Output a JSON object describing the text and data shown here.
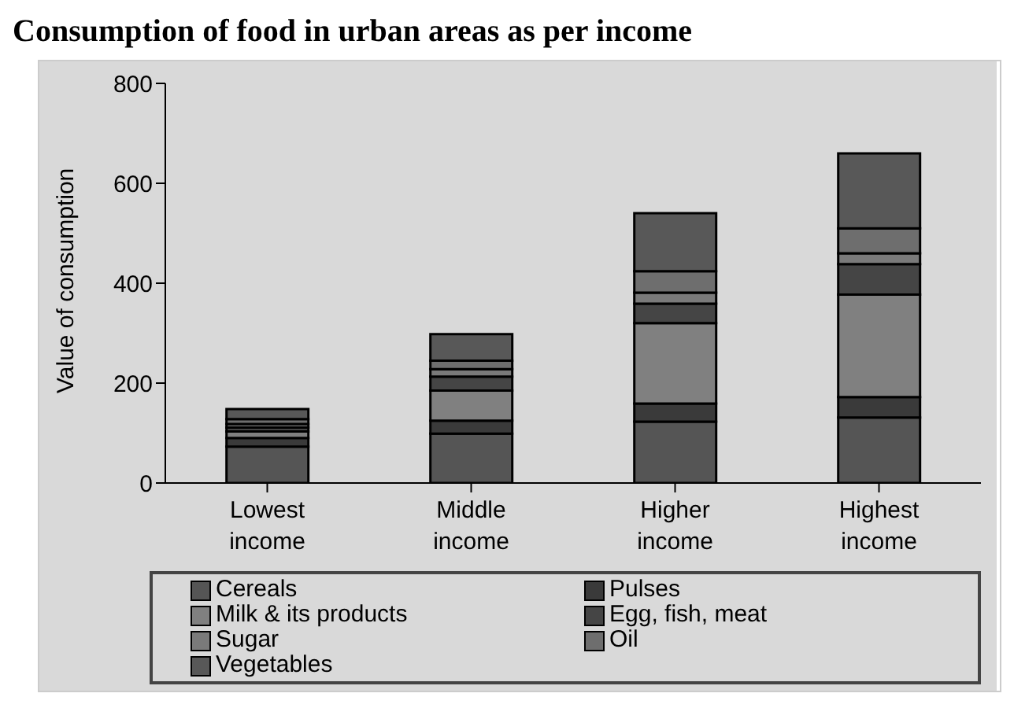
{
  "chart_data": {
    "type": "bar",
    "title": "Consumption of food in urban areas as per income",
    "ylabel": "Value of consumption",
    "categories": [
      "Lowest income",
      "Middle income",
      "Higher income",
      "Highest income"
    ],
    "stacked": true,
    "ylim": [
      0,
      800
    ],
    "yticks": [
      0,
      200,
      400,
      600,
      800
    ],
    "grid": false,
    "legend": "bottom",
    "series": [
      {
        "name": "Cereals",
        "color": "#555555",
        "values": [
          73,
          99,
          123,
          131
        ]
      },
      {
        "name": "Pulses",
        "color": "#3a3a3a",
        "values": [
          17,
          26,
          36,
          41
        ]
      },
      {
        "name": "Milk & its products",
        "color": "#808080",
        "values": [
          13,
          60,
          161,
          205
        ]
      },
      {
        "name": "Egg, fish, meat",
        "color": "#454545",
        "values": [
          8,
          28,
          39,
          61
        ]
      },
      {
        "name": "Sugar",
        "color": "#7a7a7a",
        "values": [
          7,
          15,
          22,
          22
        ]
      },
      {
        "name": "Oil",
        "color": "#6e6e6e",
        "values": [
          10,
          17,
          43,
          50
        ]
      },
      {
        "name": "Vegetables",
        "color": "#585858",
        "values": [
          20,
          53,
          116,
          150
        ]
      }
    ]
  }
}
